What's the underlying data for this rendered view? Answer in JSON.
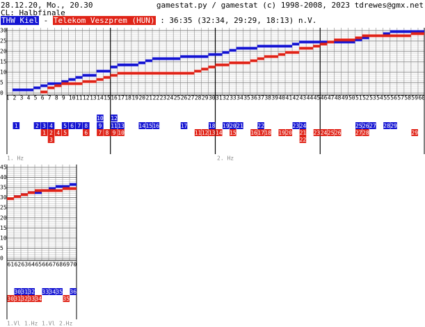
{
  "header": {
    "date": "28.12.20, Mo., 20.30",
    "credit": "gamestat.py / gamestat (c) 1998-2008, 2023 tdrewes@gmx.net",
    "competition": "CL: Halbfinale",
    "separator": "-",
    "result": ": 36:35 (32:34, 29:29, 18:13) n.V."
  },
  "chart_data": [
    {
      "type": "step",
      "xlim": [
        1,
        60
      ],
      "ylim": [
        0,
        30
      ],
      "xticks": [
        1,
        2,
        3,
        4,
        5,
        6,
        7,
        8,
        9,
        10,
        11,
        12,
        13,
        14,
        15,
        16,
        17,
        18,
        19,
        20,
        21,
        22,
        23,
        24,
        25,
        26,
        27,
        28,
        29,
        30,
        31,
        32,
        33,
        34,
        35,
        36,
        37,
        38,
        39,
        40,
        41,
        42,
        43,
        44,
        45,
        46,
        47,
        48,
        49,
        50,
        51,
        52,
        53,
        54,
        55,
        56,
        57,
        58,
        59,
        60
      ],
      "yticks": [
        0,
        5,
        10,
        15,
        20,
        25,
        30
      ],
      "period_labels": [
        "1. Hz",
        "2. Hz"
      ],
      "series": [
        {
          "name": "THW Kiel",
          "color": "#1414d2",
          "x": [
            2,
            5,
            6,
            7,
            9,
            10,
            11,
            12,
            14,
            14,
            16,
            16,
            17,
            20,
            21,
            22,
            26,
            30,
            32,
            33,
            34,
            37,
            42,
            43,
            51,
            52,
            53,
            55,
            56
          ],
          "values": [
            1,
            2,
            3,
            4,
            5,
            6,
            7,
            8,
            9,
            10,
            11,
            12,
            13,
            14,
            15,
            16,
            17,
            18,
            19,
            20,
            21,
            22,
            23,
            24,
            25,
            26,
            27,
            28,
            29
          ]
        },
        {
          "name": "Telekom Veszprem (HUN)",
          "color": "#e02418",
          "x": [
            6,
            7,
            7,
            8,
            9,
            12,
            14,
            15,
            16,
            17,
            28,
            29,
            30,
            31,
            33,
            36,
            37,
            38,
            40,
            41,
            43,
            43,
            45,
            46,
            47,
            48,
            51,
            52,
            59
          ],
          "values": [
            1,
            2,
            3,
            4,
            5,
            6,
            7,
            8,
            9,
            10,
            11,
            12,
            13,
            14,
            15,
            16,
            17,
            18,
            19,
            20,
            21,
            22,
            23,
            24,
            25,
            26,
            27,
            28,
            29
          ]
        }
      ]
    },
    {
      "type": "step",
      "xlim": [
        61,
        70
      ],
      "ylim": [
        0,
        45
      ],
      "xticks": [
        61,
        62,
        63,
        64,
        65,
        66,
        67,
        68,
        69,
        70
      ],
      "yticks": [
        0,
        5,
        10,
        15,
        20,
        25,
        30,
        35,
        40,
        45
      ],
      "period_labels": [
        "1.Vl",
        "1.Hz",
        "1.Vl",
        "2.Hz"
      ],
      "series": [
        {
          "color": "#1414d2",
          "x": [
            62,
            63,
            64,
            66,
            67,
            68,
            70
          ],
          "values": [
            30,
            31,
            32,
            33,
            34,
            35,
            36
          ]
        },
        {
          "color": "#e02418",
          "x": [
            61,
            62,
            63,
            64,
            65,
            69
          ],
          "values": [
            30,
            31,
            32,
            33,
            34,
            35
          ]
        }
      ]
    }
  ]
}
